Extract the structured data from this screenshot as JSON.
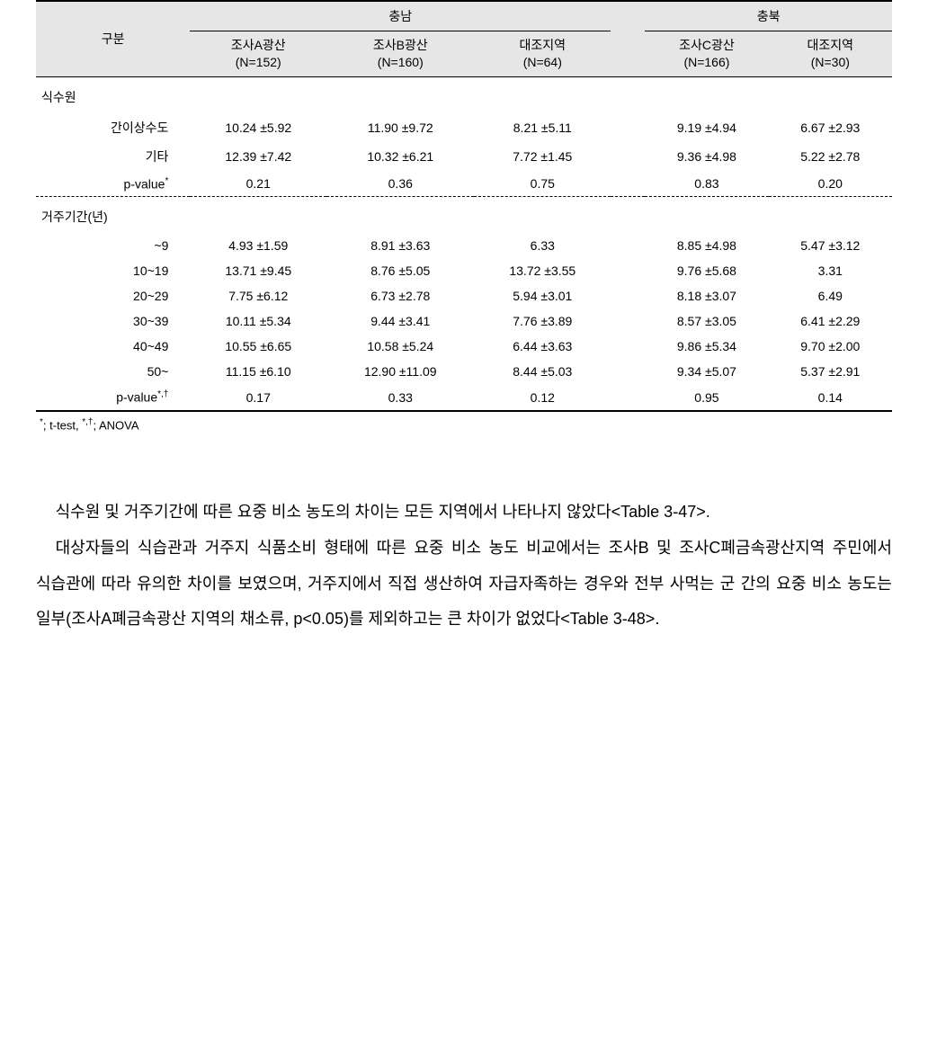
{
  "table": {
    "header": {
      "category": "구분",
      "region1": "충남",
      "region2": "충북",
      "cols": [
        {
          "name": "조사A광산",
          "n": "(N=152)"
        },
        {
          "name": "조사B광산",
          "n": "(N=160)"
        },
        {
          "name": "대조지역",
          "n": "(N=64)"
        },
        {
          "name": "조사C광산",
          "n": "(N=166)"
        },
        {
          "name": "대조지역",
          "n": "(N=30)"
        }
      ]
    },
    "group1_label": "식수원",
    "group1_rows": [
      {
        "label": "간이상수도",
        "c": [
          "10.24 ±5.92",
          "11.90 ±9.72",
          "8.21 ±5.11",
          "9.19 ±4.94",
          "6.67 ±2.93"
        ]
      },
      {
        "label": "기타",
        "c": [
          "12.39 ±7.42",
          "10.32 ±6.21",
          "7.72 ±1.45",
          "9.36 ±4.98",
          "5.22 ±2.78"
        ]
      },
      {
        "label": "p-value",
        "c": [
          "0.21",
          "0.36",
          "0.75",
          "0.83",
          "0.20"
        ],
        "sup": "*"
      }
    ],
    "group2_label": "거주기간(년)",
    "group2_rows": [
      {
        "label": "~9",
        "c": [
          "4.93 ±1.59",
          "8.91 ±3.63",
          "6.33",
          "8.85 ±4.98",
          "5.47 ±3.12"
        ]
      },
      {
        "label": "10~19",
        "c": [
          "13.71 ±9.45",
          "8.76 ±5.05",
          "13.72 ±3.55",
          "9.76 ±5.68",
          "3.31"
        ]
      },
      {
        "label": "20~29",
        "c": [
          "7.75 ±6.12",
          "6.73 ±2.78",
          "5.94 ±3.01",
          "8.18 ±3.07",
          "6.49"
        ]
      },
      {
        "label": "30~39",
        "c": [
          "10.11 ±5.34",
          "9.44 ±3.41",
          "7.76 ±3.89",
          "8.57 ±3.05",
          "6.41 ±2.29"
        ]
      },
      {
        "label": "40~49",
        "c": [
          "10.55 ±6.65",
          "10.58 ±5.24",
          "6.44 ±3.63",
          "9.86 ±5.34",
          "9.70 ±2.00"
        ]
      },
      {
        "label": "50~",
        "c": [
          "11.15 ±6.10",
          "12.90 ±11.09",
          "8.44 ±5.03",
          "9.34 ±5.07",
          "5.37 ±2.91"
        ]
      },
      {
        "label": "p-value",
        "c": [
          "0.17",
          "0.33",
          "0.12",
          "0.95",
          "0.14"
        ],
        "sup": "*,†"
      }
    ]
  },
  "footnote": {
    "a": "*; t-test, ",
    "b": "*,†; ANOVA"
  },
  "paragraphs": [
    "식수원 및 거주기간에 따른 요중 비소 농도의 차이는 모든 지역에서 나타나지 않았다<Table 3-47>.",
    "대상자들의 식습관과 거주지 식품소비 형태에 따른 요중 비소 농도 비교에서는 조사B 및 조사C폐금속광산지역 주민에서 식습관에 따라 유의한 차이를 보였으며, 거주지에서 직접 생산하여 자급자족하는 경우와 전부 사먹는 군 간의 요중 비소 농도는 일부(조사A폐금속광산 지역의 채소류, p<0.05)를 제외하고는 큰 차이가 없었다<Table 3-48>."
  ]
}
